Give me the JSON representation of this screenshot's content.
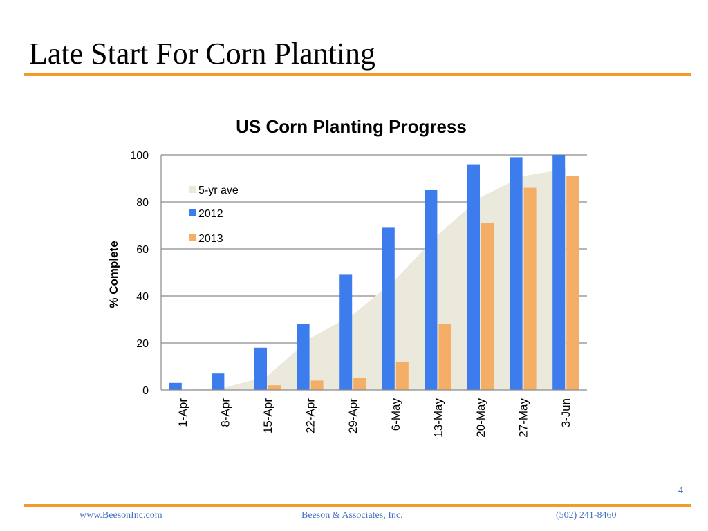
{
  "slide": {
    "title": "Late Start For Corn Planting",
    "page_number": "4",
    "footer": {
      "website": "www.BeesonInc.com",
      "company": "Beeson & Associates, Inc.",
      "phone": "(502) 241-8460"
    },
    "accent_color": "#f29b2b",
    "footer_color": "#4472c4"
  },
  "chart_data": {
    "type": "bar",
    "title": "US Corn Planting Progress",
    "xlabel": "",
    "ylabel": "% Complete",
    "ylim": [
      0,
      100
    ],
    "yticks": [
      0,
      20,
      40,
      60,
      80,
      100
    ],
    "grid": true,
    "legend_position": "top-left",
    "categories": [
      "1-Apr",
      "8-Apr",
      "15-Apr",
      "22-Apr",
      "29-Apr",
      "6-May",
      "13-May",
      "20-May",
      "27-May",
      "3-Jun"
    ],
    "series": [
      {
        "name": "5-yr ave",
        "type": "area",
        "color": "#eae9dc",
        "values": [
          0,
          1,
          6,
          22,
          32,
          47,
          66,
          82,
          91,
          94
        ]
      },
      {
        "name": "2012",
        "type": "bar",
        "color": "#3d7ced",
        "values": [
          3,
          7,
          18,
          28,
          49,
          69,
          85,
          96,
          99,
          100
        ]
      },
      {
        "name": "2013",
        "type": "bar",
        "color": "#f5ae66",
        "values": [
          0,
          0,
          2,
          4,
          5,
          12,
          28,
          71,
          86,
          91
        ]
      }
    ]
  }
}
